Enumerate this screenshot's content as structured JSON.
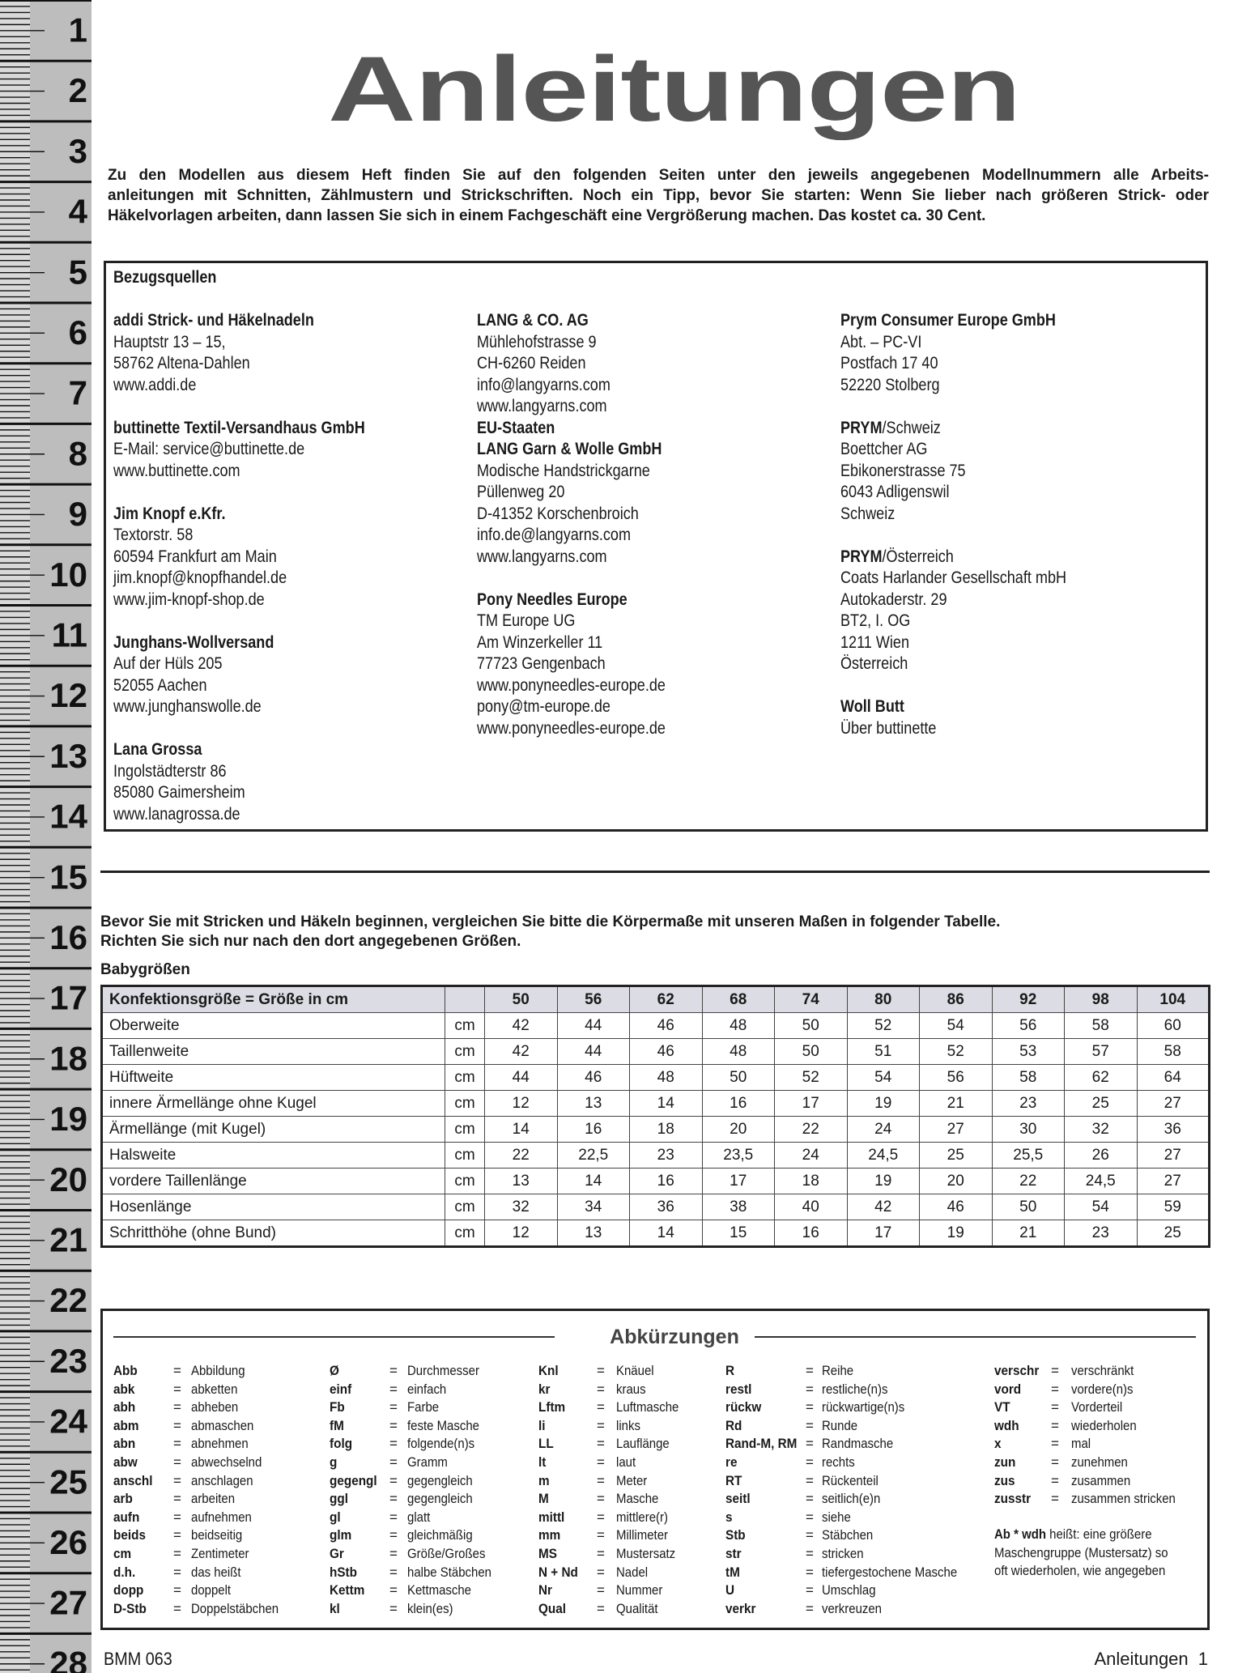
{
  "ruler": [
    1,
    2,
    3,
    4,
    5,
    6,
    7,
    8,
    9,
    10,
    11,
    12,
    13,
    14,
    15,
    16,
    17,
    18,
    19,
    20,
    21,
    22,
    23,
    24,
    25,
    26,
    27,
    28
  ],
  "header": {
    "title": "Anleitungen",
    "intro": [
      "Zu den Modellen aus diesem Heft finden Sie auf den folgenden Seiten unter den jeweils angegebenen Modellnummern alle Arbeits-",
      "anleitungen mit Schnitten, Zählmustern und Strickschriften. Noch ein Tipp, bevor Sie starten: Wenn Sie lieber nach größeren Strick- oder",
      "Häkelvorlagen arbeiten, dann lassen Sie sich in einem Fachgeschäft eine Vergrößerung machen. Das kostet ca. 30 Cent."
    ]
  },
  "suppliers": {
    "title": "Bezugsquellen",
    "columns": [
      [
        {
          "name": "addi Strick- und Häkelnadeln",
          "lines": [
            "Hauptstr 13 – 15,",
            "58762 Altena-Dahlen",
            "www.addi.de"
          ]
        },
        {
          "name": "buttinette Textil-Versandhaus GmbH",
          "lines": [
            "E-Mail: service@buttinette.de",
            "www.buttinette.com"
          ]
        },
        {
          "name": "Jim Knopf e.Kfr.",
          "lines": [
            "Textorstr. 58",
            "60594 Frankfurt am Main",
            "jim.knopf@knopfhandel.de",
            "www.jim-knopf-shop.de"
          ]
        },
        {
          "name": "Junghans-Wollversand",
          "lines": [
            "Auf der Hüls 205",
            "52055 Aachen",
            "www.junghanswolle.de"
          ]
        },
        {
          "name": "Lana Grossa",
          "lines": [
            "Ingolstädterstr 86",
            "85080 Gaimersheim",
            "www.lanagrossa.de"
          ]
        }
      ],
      [
        {
          "name": "LANG & CO. AG",
          "lines": [
            "Mühlehofstrasse 9",
            "CH-6260 Reiden",
            "info@langyarns.com",
            "www.langyarns.com",
            {
              "bold": "EU-Staaten"
            },
            {
              "bold": "LANG Garn & Wolle GmbH"
            },
            "Modische Handstrickgarne",
            "Püllenweg 20",
            "D-41352 Korschenbroich",
            "info.de@langyarns.com",
            "www.langyarns.com"
          ]
        },
        {
          "name": "Pony Needles Europe",
          "lines": [
            "TM Europe UG",
            "Am Winzerkeller 11",
            "77723 Gengenbach",
            "www.ponyneedles-europe.de",
            "pony@tm-europe.de",
            "www.ponyneedles-europe.de"
          ]
        }
      ],
      [
        {
          "name": "Prym Consumer Europe GmbH",
          "lines": [
            "Abt. – PC-VI",
            "Postfach 17 40",
            "52220 Stolberg"
          ]
        },
        {
          "name": "PRYM",
          "rest": "/Schweiz",
          "lines": [
            "Boettcher AG",
            "Ebikonerstrasse 75",
            "6043 Adligenswil",
            "Schweiz"
          ]
        },
        {
          "name": "PRYM",
          "rest": "/Österreich",
          "lines": [
            "Coats Harlander Gesellschaft mbH",
            "Autokaderstr. 29",
            "BT2, I. OG",
            "1211 Wien",
            "Österreich"
          ]
        },
        {
          "name": "Woll Butt",
          "lines": [
            "Über buttinette"
          ]
        }
      ]
    ]
  },
  "sizes": {
    "intro": [
      "Bevor Sie mit Stricken und Häkeln beginnen, vergleichen Sie bitte die Körpermaße mit unseren Maßen in folgender Tabelle.",
      "Richten Sie sich nur nach den dort angegebenen Größen."
    ],
    "subtitle": "Babygrößen",
    "table": {
      "header": {
        "label": "Konfektionsgröße = Größe in cm",
        "sizes": [
          "50",
          "56",
          "62",
          "68",
          "74",
          "80",
          "86",
          "92",
          "98",
          "104"
        ]
      },
      "rows": [
        {
          "label": "Oberweite",
          "unit": "cm",
          "values": [
            "42",
            "44",
            "46",
            "48",
            "50",
            "52",
            "54",
            "56",
            "58",
            "60"
          ]
        },
        {
          "label": "Taillenweite",
          "unit": "cm",
          "values": [
            "42",
            "44",
            "46",
            "48",
            "50",
            "51",
            "52",
            "53",
            "57",
            "58"
          ]
        },
        {
          "label": "Hüftweite",
          "unit": "cm",
          "values": [
            "44",
            "46",
            "48",
            "50",
            "52",
            "54",
            "56",
            "58",
            "62",
            "64"
          ]
        },
        {
          "label": "innere Ärmellänge ohne Kugel",
          "unit": "cm",
          "values": [
            "12",
            "13",
            "14",
            "16",
            "17",
            "19",
            "21",
            "23",
            "25",
            "27"
          ]
        },
        {
          "label": "Ärmellänge (mit Kugel)",
          "unit": "cm",
          "values": [
            "14",
            "16",
            "18",
            "20",
            "22",
            "24",
            "27",
            "30",
            "32",
            "36"
          ]
        },
        {
          "label": "Halsweite",
          "unit": "cm",
          "values": [
            "22",
            "22,5",
            "23",
            "23,5",
            "24",
            "24,5",
            "25",
            "25,5",
            "26",
            "27"
          ]
        },
        {
          "label": "vordere Taillenlänge",
          "unit": "cm",
          "values": [
            "13",
            "14",
            "16",
            "17",
            "18",
            "19",
            "20",
            "22",
            "24,5",
            "27"
          ]
        },
        {
          "label": "Hosenlänge",
          "unit": "cm",
          "values": [
            "32",
            "34",
            "36",
            "38",
            "40",
            "42",
            "46",
            "50",
            "54",
            "59"
          ]
        },
        {
          "label": "Schritthöhe (ohne Bund)",
          "unit": "cm",
          "values": [
            "12",
            "13",
            "14",
            "15",
            "16",
            "17",
            "19",
            "21",
            "23",
            "25"
          ]
        }
      ]
    }
  },
  "abbreviations": {
    "title": "Abkürzungen",
    "equals": "=",
    "columns": [
      [
        [
          "Abb",
          "Abbildung"
        ],
        [
          "abk",
          "abketten"
        ],
        [
          "abh",
          "abheben"
        ],
        [
          "abm",
          "abmaschen"
        ],
        [
          "abn",
          "abnehmen"
        ],
        [
          "abw",
          "abwechselnd"
        ],
        [
          "anschl",
          "anschlagen"
        ],
        [
          "arb",
          "arbeiten"
        ],
        [
          "aufn",
          "aufnehmen"
        ],
        [
          "beids",
          "beidseitig"
        ],
        [
          "cm",
          "Zentimeter"
        ],
        [
          "d.h.",
          "das heißt"
        ],
        [
          "dopp",
          "doppelt"
        ],
        [
          "D-Stb",
          "Doppelstäbchen"
        ]
      ],
      [
        [
          "Ø",
          "Durchmesser"
        ],
        [
          "einf",
          "einfach"
        ],
        [
          "Fb",
          "Farbe"
        ],
        [
          "fM",
          "feste Masche"
        ],
        [
          "folg",
          "folgende(n)s"
        ],
        [
          "g",
          "Gramm"
        ],
        [
          "gegengl",
          "gegengleich"
        ],
        [
          "ggl",
          "gegengleich"
        ],
        [
          "gl",
          "glatt"
        ],
        [
          "glm",
          "gleichmäßig"
        ],
        [
          "Gr",
          "Größe/Großes"
        ],
        [
          "hStb",
          "halbe Stäbchen"
        ],
        [
          "Kettm",
          "Kettmasche"
        ],
        [
          "kl",
          "klein(es)"
        ]
      ],
      [
        [
          "Knl",
          "Knäuel"
        ],
        [
          "kr",
          "kraus"
        ],
        [
          "Lftm",
          "Luftmasche"
        ],
        [
          "li",
          "links"
        ],
        [
          "LL",
          "Lauflänge"
        ],
        [
          "lt",
          "laut"
        ],
        [
          "m",
          "Meter"
        ],
        [
          "M",
          "Masche"
        ],
        [
          "mittl",
          "mittlere(r)"
        ],
        [
          "mm",
          "Millimeter"
        ],
        [
          "MS",
          "Mustersatz"
        ],
        [
          "N + Nd",
          "Nadel"
        ],
        [
          "Nr",
          "Nummer"
        ],
        [
          "Qual",
          "Qualität"
        ]
      ],
      [
        [
          "R",
          "Reihe"
        ],
        [
          "restl",
          "restliche(n)s"
        ],
        [
          "rückw",
          "rückwartige(n)s"
        ],
        [
          "Rd",
          "Runde"
        ],
        [
          "Rand-M, RM",
          "Randmasche"
        ],
        [
          "re",
          "rechts"
        ],
        [
          "RT",
          "Rückenteil"
        ],
        [
          "seitl",
          "seitlich(e)n"
        ],
        [
          "s",
          "siehe"
        ],
        [
          "Stb",
          "Stäbchen"
        ],
        [
          "str",
          "stricken"
        ],
        [
          "tM",
          "tiefergestochene Masche"
        ],
        [
          "U",
          "Umschlag"
        ],
        [
          "verkr",
          "verkreuzen"
        ]
      ],
      [
        [
          "verschr",
          "verschränkt"
        ],
        [
          "vord",
          "vordere(n)s"
        ],
        [
          "VT",
          "Vorderteil"
        ],
        [
          "wdh",
          "wiederholen"
        ],
        [
          "x",
          "mal"
        ],
        [
          "zun",
          "zunehmen"
        ],
        [
          "zus",
          "zusammen"
        ],
        [
          "zusstr",
          "zusammen stricken"
        ]
      ]
    ],
    "note": {
      "bold": "Ab * wdh",
      "lines": [
        "heißt: eine größere",
        "Maschengruppe (Mustersatz) so",
        "oft wiederholen, wie angegeben"
      ]
    }
  },
  "footer": {
    "left": "BMM 063",
    "right": "Anleitungen 1"
  }
}
